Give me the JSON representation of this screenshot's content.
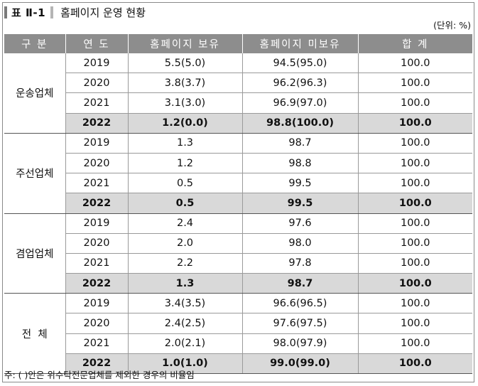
{
  "title": {
    "label": "표 Ⅱ-1",
    "text": "홈페이지 운영 현황"
  },
  "unit": "(단위: %)",
  "headers": [
    "구 분",
    "연 도",
    "홈페이지 보유",
    "홈페이지 미보유",
    "합 계"
  ],
  "groups": [
    {
      "name": "운송업체",
      "rows": [
        {
          "year": "2019",
          "has": "5.5(5.0)",
          "none": "94.5(95.0)",
          "total": "100.0"
        },
        {
          "year": "2020",
          "has": "3.8(3.7)",
          "none": "96.2(96.3)",
          "total": "100.0"
        },
        {
          "year": "2021",
          "has": "3.1(3.0)",
          "none": "96.9(97.0)",
          "total": "100.0"
        },
        {
          "year": "2022",
          "has": "1.2(0.0)",
          "none": "98.8(100.0)",
          "total": "100.0"
        }
      ]
    },
    {
      "name": "주선업체",
      "rows": [
        {
          "year": "2019",
          "has": "1.3",
          "none": "98.7",
          "total": "100.0"
        },
        {
          "year": "2020",
          "has": "1.2",
          "none": "98.8",
          "total": "100.0"
        },
        {
          "year": "2021",
          "has": "0.5",
          "none": "99.5",
          "total": "100.0"
        },
        {
          "year": "2022",
          "has": "0.5",
          "none": "99.5",
          "total": "100.0"
        }
      ]
    },
    {
      "name": "겸업업체",
      "rows": [
        {
          "year": "2019",
          "has": "2.4",
          "none": "97.6",
          "total": "100.0"
        },
        {
          "year": "2020",
          "has": "2.0",
          "none": "98.0",
          "total": "100.0"
        },
        {
          "year": "2021",
          "has": "2.2",
          "none": "97.8",
          "total": "100.0"
        },
        {
          "year": "2022",
          "has": "1.3",
          "none": "98.7",
          "total": "100.0"
        }
      ]
    },
    {
      "name": "전  체",
      "rows": [
        {
          "year": "2019",
          "has": "3.4(3.5)",
          "none": "96.6(96.5)",
          "total": "100.0"
        },
        {
          "year": "2020",
          "has": "2.4(2.5)",
          "none": "97.6(97.5)",
          "total": "100.0"
        },
        {
          "year": "2021",
          "has": "2.0(2.1)",
          "none": "98.0(97.9)",
          "total": "100.0"
        },
        {
          "year": "2022",
          "has": "1.0(1.0)",
          "none": "99.0(99.0)",
          "total": "100.0"
        }
      ]
    }
  ],
  "note": "주: ( )안은 위수탁전문업체를 제외한 경우의 비율임"
}
